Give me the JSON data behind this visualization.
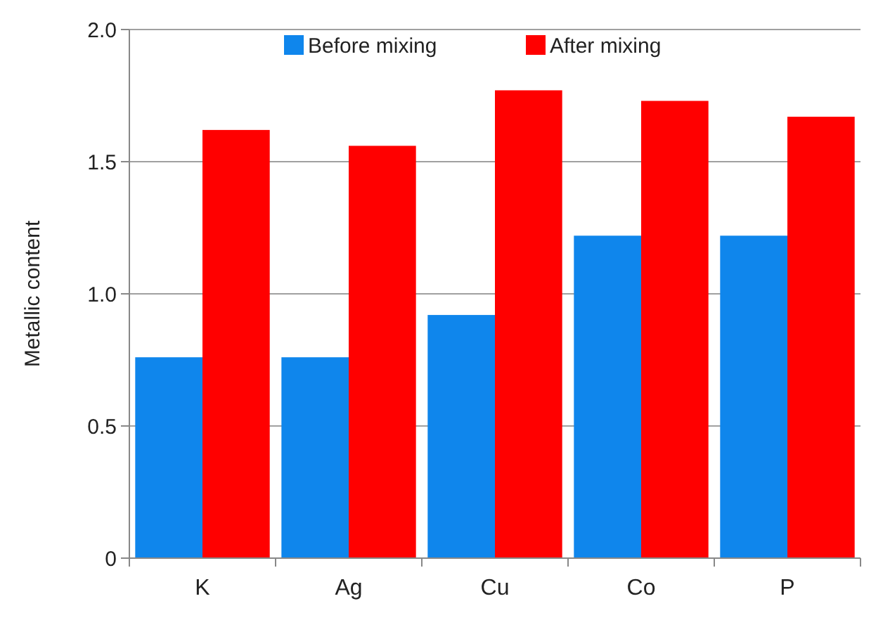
{
  "chart_data": {
    "type": "bar",
    "ylabel": "Metallic content",
    "categories": [
      "K",
      "Ag",
      "Cu",
      "Co",
      "P"
    ],
    "series": [
      {
        "name": "Before mixing",
        "color": "#0f86ec",
        "values": [
          0.76,
          0.76,
          0.92,
          1.22,
          1.22
        ]
      },
      {
        "name": "After mixing",
        "color": "#ff0000",
        "values": [
          1.62,
          1.56,
          1.77,
          1.73,
          1.67
        ]
      }
    ],
    "ylim": [
      0,
      2
    ],
    "yticks": [
      {
        "value": 0,
        "label": "0"
      },
      {
        "value": 0.5,
        "label": "0.5"
      },
      {
        "value": 1,
        "label": "1.0"
      },
      {
        "value": 1.5,
        "label": "1.5"
      },
      {
        "value": 2,
        "label": "2.0"
      }
    ],
    "grid": "y",
    "legend": "top"
  }
}
